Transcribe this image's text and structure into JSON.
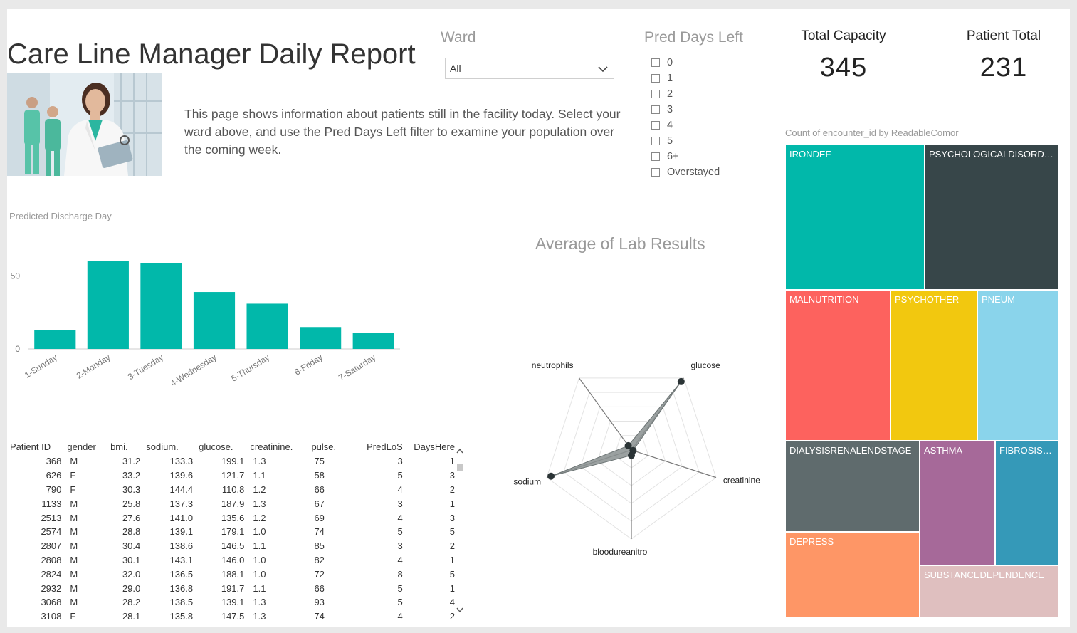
{
  "report": {
    "title": "Care Line Manager Daily Report",
    "description": "This page shows information about patients still in the facility today.  Select your ward above, and use the Pred Days Left filter to examine your population over the coming week."
  },
  "ward_filter": {
    "label": "Ward",
    "selected": "All"
  },
  "pred_days_filter": {
    "label": "Pred Days Left",
    "options": [
      "0",
      "1",
      "2",
      "3",
      "4",
      "5",
      "6+",
      "Overstayed"
    ]
  },
  "kpis": {
    "capacity": {
      "label": "Total Capacity",
      "value": "345"
    },
    "patients": {
      "label": "Patient Total",
      "value": "231"
    }
  },
  "chart_data": [
    {
      "type": "bar",
      "title": "Predicted Discharge Day",
      "categories": [
        "1-Sunday",
        "2-Monday",
        "3-Tuesday",
        "4-Wednesday",
        "5-Thursday",
        "6-Friday",
        "7-Saturday"
      ],
      "values": [
        13,
        60,
        59,
        39,
        31,
        15,
        11
      ],
      "yticks": [
        "0",
        "50"
      ],
      "ylim": [
        0,
        70
      ],
      "color": "#01B8AA"
    },
    {
      "type": "radar",
      "title": "Average of Lab Results",
      "axes": [
        "glucose",
        "creatinine",
        "bloodureanitro",
        "sodium",
        "neutrophils"
      ],
      "values": [
        0.95,
        0.02,
        0.06,
        0.95,
        0.06
      ],
      "fill": "#8a9090",
      "point_color": "#2b3436"
    },
    {
      "type": "treemap",
      "title": "Count of encounter_id by ReadableComor",
      "items": [
        {
          "name": "IRONDEF",
          "color": "#01B8AA"
        },
        {
          "name": "PSYCHOLOGICALDISORDE...",
          "color": "#374649"
        },
        {
          "name": "MALNUTRITION",
          "color": "#FD625E"
        },
        {
          "name": "PSYCHOTHER",
          "color": "#F2C80F"
        },
        {
          "name": "PNEUM",
          "color": "#8AD4EB"
        },
        {
          "name": "DIALYSISRENALENDSTAGE",
          "color": "#5F6B6D"
        },
        {
          "name": "ASTHMA",
          "color": "#A66999"
        },
        {
          "name": "FIBROSISA...",
          "color": "#3599B8"
        },
        {
          "name": "DEPRESS",
          "color": "#FE9666"
        },
        {
          "name": "SUBSTANCEDEPENDENCE",
          "color": "#DFBFBF"
        }
      ]
    }
  ],
  "table": {
    "columns": [
      "Patient ID",
      "gender",
      "bmi.",
      "sodium.",
      "glucose.",
      "creatinine.",
      "pulse.",
      "PredLoS",
      "DaysHere"
    ],
    "rows": [
      [
        "368",
        "M",
        "31.2",
        "133.3",
        "199.1",
        "1.3",
        "75",
        "3",
        "1"
      ],
      [
        "626",
        "F",
        "33.2",
        "139.6",
        "121.7",
        "1.1",
        "58",
        "5",
        "3"
      ],
      [
        "790",
        "F",
        "30.3",
        "144.4",
        "110.8",
        "1.2",
        "66",
        "4",
        "2"
      ],
      [
        "1133",
        "M",
        "25.8",
        "137.3",
        "187.9",
        "1.3",
        "67",
        "3",
        "1"
      ],
      [
        "2513",
        "M",
        "27.6",
        "141.0",
        "135.6",
        "1.2",
        "69",
        "4",
        "3"
      ],
      [
        "2574",
        "M",
        "28.8",
        "139.1",
        "179.1",
        "1.0",
        "74",
        "5",
        "5"
      ],
      [
        "2807",
        "M",
        "30.4",
        "138.6",
        "146.5",
        "1.1",
        "85",
        "3",
        "2"
      ],
      [
        "2808",
        "M",
        "30.1",
        "143.1",
        "146.0",
        "1.0",
        "82",
        "4",
        "1"
      ],
      [
        "2824",
        "M",
        "32.0",
        "136.5",
        "188.1",
        "1.0",
        "72",
        "8",
        "5"
      ],
      [
        "2932",
        "M",
        "29.0",
        "136.8",
        "191.7",
        "1.1",
        "66",
        "5",
        "1"
      ],
      [
        "3068",
        "M",
        "28.2",
        "138.5",
        "139.1",
        "1.3",
        "93",
        "5",
        "4"
      ],
      [
        "3108",
        "F",
        "28.1",
        "135.8",
        "147.5",
        "1.3",
        "74",
        "4",
        "2"
      ]
    ]
  }
}
